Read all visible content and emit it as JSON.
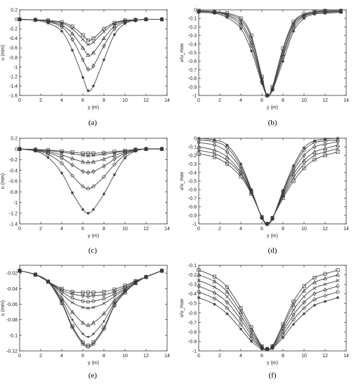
{
  "chart_data": [
    {
      "panel": "(a)",
      "type": "line",
      "xlabel": "y (m)",
      "ylabel": "u (mm)",
      "xlim": [
        0,
        14
      ],
      "ylim": [
        -1.6,
        0.2
      ],
      "xticks": [
        "0",
        "2",
        "4",
        "6",
        "8",
        "10",
        "12",
        "14"
      ],
      "yticks": [
        "0.2",
        "0",
        "-0.2",
        "-0.4",
        "-0.6",
        "-0.8",
        "-1",
        "-1.2",
        "-1.4",
        "-1.6"
      ],
      "x": [
        0,
        1.5,
        2.7,
        4.0,
        5.0,
        6.0,
        6.5,
        7.0,
        8.0,
        9.0,
        10.0,
        11.0,
        12.0,
        13.5
      ],
      "series": [
        {
          "marker": "square",
          "values": [
            0,
            -0.01,
            -0.02,
            -0.06,
            -0.15,
            -0.33,
            -0.44,
            -0.4,
            -0.2,
            -0.07,
            -0.02,
            -0.01,
            0,
            0
          ]
        },
        {
          "marker": "x",
          "values": [
            0,
            -0.01,
            -0.03,
            -0.08,
            -0.2,
            -0.42,
            -0.53,
            -0.48,
            -0.26,
            -0.09,
            -0.03,
            -0.01,
            0,
            0
          ]
        },
        {
          "marker": "triangle",
          "values": [
            0,
            -0.01,
            -0.04,
            -0.12,
            -0.3,
            -0.6,
            -0.75,
            -0.7,
            -0.4,
            -0.14,
            -0.04,
            -0.01,
            0,
            0
          ]
        },
        {
          "marker": "diamond",
          "values": [
            0,
            -0.01,
            -0.05,
            -0.16,
            -0.42,
            -0.85,
            -1.05,
            -0.98,
            -0.56,
            -0.2,
            -0.06,
            -0.02,
            0,
            0
          ]
        },
        {
          "marker": "star",
          "values": [
            0,
            -0.02,
            -0.08,
            -0.25,
            -0.65,
            -1.22,
            -1.5,
            -1.4,
            -0.85,
            -0.32,
            -0.09,
            -0.02,
            0,
            0
          ]
        }
      ]
    },
    {
      "panel": "(b)",
      "type": "line",
      "xlabel": "y (m)",
      "ylabel": "u/u_max",
      "xlim": [
        0,
        14
      ],
      "ylim": [
        -1,
        0
      ],
      "xticks": [
        "0",
        "2",
        "4",
        "6",
        "8",
        "10",
        "12",
        "14"
      ],
      "yticks": [
        "0",
        "-0.1",
        "-0.2",
        "-0.3",
        "-0.4",
        "-0.5",
        "-0.6",
        "-0.7",
        "-0.8",
        "-0.9",
        "-1"
      ],
      "x": [
        0,
        1.5,
        2.7,
        4.0,
        5.0,
        6.0,
        6.5,
        7.0,
        8.0,
        9.0,
        10.0,
        11.0,
        12.0,
        13.5
      ],
      "series": [
        {
          "marker": "square",
          "values": [
            -0.01,
            -0.02,
            -0.04,
            -0.1,
            -0.3,
            -0.78,
            -1.0,
            -0.9,
            -0.45,
            -0.14,
            -0.05,
            -0.02,
            -0.01,
            -0.01
          ]
        },
        {
          "marker": "x",
          "values": [
            -0.01,
            -0.02,
            -0.05,
            -0.12,
            -0.33,
            -0.8,
            -1.0,
            -0.91,
            -0.48,
            -0.16,
            -0.06,
            -0.02,
            -0.01,
            -0.01
          ]
        },
        {
          "marker": "triangle",
          "values": [
            -0.02,
            -0.03,
            -0.06,
            -0.15,
            -0.38,
            -0.82,
            -1.0,
            -0.92,
            -0.52,
            -0.18,
            -0.07,
            -0.03,
            -0.02,
            -0.02
          ]
        },
        {
          "marker": "diamond",
          "values": [
            -0.02,
            -0.03,
            -0.07,
            -0.18,
            -0.42,
            -0.84,
            -1.0,
            -0.93,
            -0.55,
            -0.21,
            -0.08,
            -0.04,
            -0.03,
            -0.02
          ]
        },
        {
          "marker": "star",
          "values": [
            -0.03,
            -0.04,
            -0.09,
            -0.22,
            -0.48,
            -0.86,
            -1.0,
            -0.94,
            -0.6,
            -0.25,
            -0.1,
            -0.05,
            -0.04,
            -0.03
          ]
        }
      ]
    },
    {
      "panel": "(c)",
      "type": "line",
      "xlabel": "y (m)",
      "ylabel": "u (mm)",
      "xlim": [
        0,
        14
      ],
      "ylim": [
        -1.4,
        0.2
      ],
      "xticks": [
        "0",
        "2",
        "4",
        "6",
        "8",
        "10",
        "12",
        "14"
      ],
      "yticks": [
        "0.2",
        "0",
        "-0.2",
        "-0.4",
        "-0.6",
        "-0.8",
        "-1",
        "-1.2",
        "-1.4"
      ],
      "x": [
        0,
        1.5,
        2.7,
        4.0,
        5.0,
        6.0,
        6.5,
        7.0,
        8.0,
        9.0,
        10.0,
        11.0,
        12.0,
        13.5
      ],
      "series": [
        {
          "marker": "square",
          "values": [
            0,
            -0.01,
            -0.02,
            -0.04,
            -0.06,
            -0.08,
            -0.08,
            -0.08,
            -0.07,
            -0.05,
            -0.03,
            -0.01,
            0,
            0
          ]
        },
        {
          "marker": "x",
          "values": [
            0,
            -0.01,
            -0.03,
            -0.06,
            -0.09,
            -0.12,
            -0.13,
            -0.12,
            -0.1,
            -0.07,
            -0.04,
            -0.01,
            0,
            0
          ]
        },
        {
          "marker": "triangle",
          "values": [
            0,
            -0.02,
            -0.05,
            -0.11,
            -0.18,
            -0.24,
            -0.25,
            -0.24,
            -0.19,
            -0.12,
            -0.06,
            -0.02,
            0,
            0
          ]
        },
        {
          "marker": "diamond",
          "values": [
            0,
            -0.02,
            -0.07,
            -0.17,
            -0.3,
            -0.42,
            -0.44,
            -0.42,
            -0.32,
            -0.19,
            -0.08,
            -0.02,
            0,
            0
          ]
        },
        {
          "marker": "circle",
          "values": [
            0,
            -0.03,
            -0.1,
            -0.27,
            -0.5,
            -0.7,
            -0.74,
            -0.7,
            -0.52,
            -0.29,
            -0.11,
            -0.03,
            0,
            0
          ]
        },
        {
          "marker": "star",
          "values": [
            0,
            -0.04,
            -0.16,
            -0.45,
            -0.82,
            -1.13,
            -1.2,
            -1.13,
            -0.84,
            -0.48,
            -0.17,
            -0.04,
            0,
            0
          ]
        }
      ]
    },
    {
      "panel": "(d)",
      "type": "line",
      "xlabel": "y (m)",
      "ylabel": "u/u_max",
      "xlim": [
        0,
        14
      ],
      "ylim": [
        -1,
        0
      ],
      "xticks": [
        "0",
        "2",
        "4",
        "6",
        "8",
        "10",
        "12",
        "14"
      ],
      "yticks": [
        "0",
        "-0.1",
        "-0.2",
        "-0.3",
        "-0.4",
        "-0.5",
        "-0.6",
        "-0.7",
        "-0.8",
        "-0.9",
        "-1"
      ],
      "x": [
        0,
        1.5,
        2.7,
        4.0,
        5.0,
        6.0,
        6.5,
        7.0,
        8.0,
        9.0,
        10.0,
        11.0,
        12.0,
        13.2
      ],
      "series": [
        {
          "marker": "square",
          "values": [
            -0.18,
            -0.22,
            -0.3,
            -0.45,
            -0.65,
            -0.92,
            -1.0,
            -0.93,
            -0.7,
            -0.5,
            -0.35,
            -0.25,
            -0.2,
            -0.16
          ]
        },
        {
          "marker": "x",
          "values": [
            -0.14,
            -0.18,
            -0.26,
            -0.42,
            -0.64,
            -0.92,
            -1.0,
            -0.93,
            -0.68,
            -0.46,
            -0.3,
            -0.2,
            -0.16,
            -0.12
          ]
        },
        {
          "marker": "triangle",
          "values": [
            -0.1,
            -0.14,
            -0.22,
            -0.4,
            -0.63,
            -0.92,
            -1.0,
            -0.93,
            -0.66,
            -0.42,
            -0.26,
            -0.16,
            -0.12,
            -0.08
          ]
        },
        {
          "marker": "diamond",
          "values": [
            -0.05,
            -0.08,
            -0.16,
            -0.36,
            -0.62,
            -0.93,
            -1.0,
            -0.94,
            -0.64,
            -0.38,
            -0.2,
            -0.1,
            -0.07,
            -0.04
          ]
        },
        {
          "marker": "circle",
          "values": [
            -0.02,
            -0.04,
            -0.11,
            -0.33,
            -0.61,
            -0.93,
            -1.0,
            -0.94,
            -0.62,
            -0.35,
            -0.14,
            -0.05,
            -0.03,
            -0.02
          ]
        },
        {
          "marker": "star",
          "values": [
            0.0,
            -0.02,
            -0.08,
            -0.3,
            -0.6,
            -0.93,
            -1.0,
            -0.94,
            -0.61,
            -0.32,
            -0.11,
            -0.03,
            -0.01,
            0.0
          ]
        }
      ]
    },
    {
      "panel": "(e)",
      "type": "line",
      "xlabel": "y (m)",
      "ylabel": "u (mm)",
      "xlim": [
        0,
        14
      ],
      "ylim": [
        -0.12,
        -0.01
      ],
      "xticks": [
        "0",
        "2",
        "4",
        "6",
        "8",
        "10",
        "12",
        "14"
      ],
      "yticks": [
        "-0.02",
        "-0.04",
        "-0.06",
        "-0.08",
        "-0.1",
        "-0.12"
      ],
      "x": [
        0,
        1.5,
        2.7,
        4.0,
        5.0,
        6.0,
        6.5,
        7.0,
        8.0,
        9.0,
        10.0,
        11.0,
        12.0,
        13.5
      ],
      "series": [
        {
          "marker": "square",
          "values": [
            -0.017,
            -0.022,
            -0.031,
            -0.04,
            -0.044,
            -0.045,
            -0.045,
            -0.045,
            -0.044,
            -0.041,
            -0.036,
            -0.03,
            -0.025,
            -0.017
          ]
        },
        {
          "marker": "diamond",
          "values": [
            -0.017,
            -0.022,
            -0.031,
            -0.042,
            -0.047,
            -0.049,
            -0.05,
            -0.049,
            -0.048,
            -0.044,
            -0.038,
            -0.031,
            -0.025,
            -0.017
          ]
        },
        {
          "marker": "circle",
          "values": [
            -0.017,
            -0.022,
            -0.031,
            -0.044,
            -0.052,
            -0.056,
            -0.057,
            -0.056,
            -0.053,
            -0.047,
            -0.04,
            -0.032,
            -0.025,
            -0.017
          ]
        },
        {
          "marker": "x",
          "values": [
            -0.017,
            -0.022,
            -0.031,
            -0.047,
            -0.058,
            -0.064,
            -0.065,
            -0.064,
            -0.059,
            -0.05,
            -0.041,
            -0.032,
            -0.025,
            -0.017
          ]
        },
        {
          "marker": "triangle",
          "values": [
            -0.017,
            -0.022,
            -0.031,
            -0.052,
            -0.07,
            -0.084,
            -0.087,
            -0.084,
            -0.072,
            -0.055,
            -0.043,
            -0.033,
            -0.025,
            -0.017
          ]
        },
        {
          "marker": "dot",
          "values": [
            -0.017,
            -0.022,
            -0.031,
            -0.055,
            -0.08,
            -0.098,
            -0.102,
            -0.098,
            -0.082,
            -0.058,
            -0.044,
            -0.033,
            -0.025,
            -0.017
          ]
        },
        {
          "marker": "square",
          "values": [
            -0.017,
            -0.022,
            -0.031,
            -0.058,
            -0.088,
            -0.109,
            -0.113,
            -0.109,
            -0.09,
            -0.061,
            -0.045,
            -0.033,
            -0.025,
            -0.017
          ]
        },
        {
          "marker": "circle",
          "values": [
            -0.017,
            -0.022,
            -0.031,
            -0.059,
            -0.09,
            -0.111,
            -0.115,
            -0.111,
            -0.092,
            -0.062,
            -0.045,
            -0.033,
            -0.025,
            -0.017
          ]
        }
      ]
    },
    {
      "panel": "(f)",
      "type": "line",
      "xlabel": "y (m)",
      "ylabel": "u/u_max",
      "xlim": [
        0,
        14
      ],
      "ylim": [
        -1,
        -0.1
      ],
      "xticks": [
        "0",
        "2",
        "4",
        "6",
        "8",
        "10",
        "12",
        "14"
      ],
      "yticks": [
        "-0.1",
        "-0.2",
        "-0.3",
        "-0.4",
        "-0.5",
        "-0.6",
        "-0.7",
        "-0.8",
        "-0.9",
        "-1"
      ],
      "x": [
        0,
        1.5,
        2.7,
        4.0,
        5.0,
        6.0,
        6.5,
        7.0,
        8.0,
        9.0,
        10.0,
        11.0,
        12.0,
        13.2
      ],
      "series": [
        {
          "marker": "square",
          "values": [
            -0.15,
            -0.22,
            -0.33,
            -0.55,
            -0.75,
            -0.95,
            -0.98,
            -0.95,
            -0.72,
            -0.48,
            -0.32,
            -0.23,
            -0.19,
            -0.15
          ]
        },
        {
          "marker": "triangle",
          "values": [
            -0.2,
            -0.27,
            -0.38,
            -0.59,
            -0.78,
            -0.96,
            -0.98,
            -0.95,
            -0.74,
            -0.52,
            -0.37,
            -0.28,
            -0.24,
            -0.2
          ]
        },
        {
          "marker": "x",
          "values": [
            -0.26,
            -0.33,
            -0.43,
            -0.63,
            -0.81,
            -0.96,
            -0.98,
            -0.96,
            -0.77,
            -0.57,
            -0.43,
            -0.34,
            -0.3,
            -0.26
          ]
        },
        {
          "marker": "diamond",
          "values": [
            -0.32,
            -0.39,
            -0.49,
            -0.67,
            -0.84,
            -0.97,
            -0.98,
            -0.96,
            -0.8,
            -0.62,
            -0.49,
            -0.4,
            -0.36,
            -0.32
          ]
        },
        {
          "marker": "circle",
          "values": [
            -0.38,
            -0.45,
            -0.55,
            -0.72,
            -0.87,
            -0.97,
            -0.98,
            -0.97,
            -0.83,
            -0.67,
            -0.55,
            -0.46,
            -0.42,
            -0.38
          ]
        },
        {
          "marker": "star",
          "values": [
            -0.44,
            -0.51,
            -0.61,
            -0.77,
            -0.9,
            -0.98,
            -0.98,
            -0.97,
            -0.86,
            -0.72,
            -0.61,
            -0.52,
            -0.48,
            -0.44
          ]
        }
      ]
    }
  ]
}
